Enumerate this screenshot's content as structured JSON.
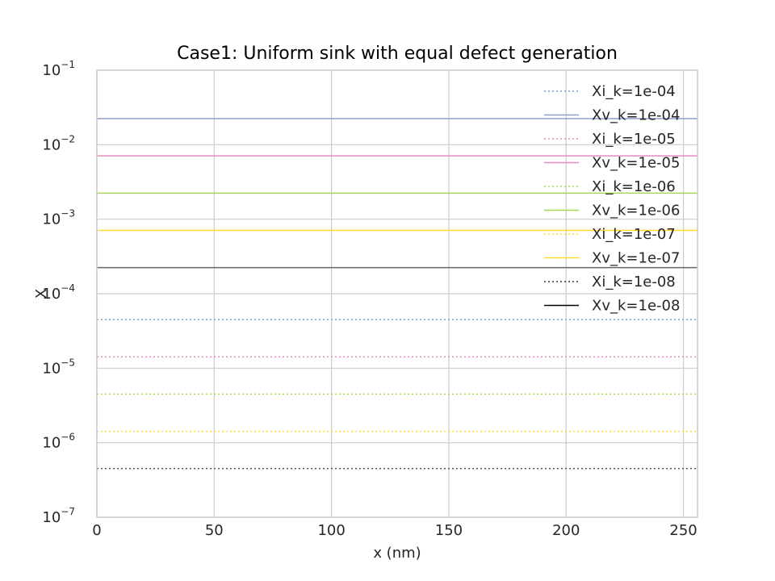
{
  "chart_data": {
    "type": "line",
    "title": "Case1: Uniform sink with equal defect generation",
    "xlabel": "x (nm)",
    "ylabel": "X",
    "xlim": [
      0,
      256
    ],
    "ylim": [
      1e-07,
      0.1
    ],
    "yscale": "log",
    "grid": true,
    "legend_position": "top-right",
    "x_ticks": [
      0,
      50,
      100,
      150,
      200,
      250
    ],
    "x_tick_labels": [
      "0",
      "50",
      "100",
      "150",
      "200",
      "250"
    ],
    "y_tick_labels": [
      {
        "base": "10",
        "exp": "−1",
        "value": 0.1
      },
      {
        "base": "10",
        "exp": "−2",
        "value": 0.01
      },
      {
        "base": "10",
        "exp": "−3",
        "value": 0.001
      },
      {
        "base": "10",
        "exp": "−4",
        "value": 0.0001
      },
      {
        "base": "10",
        "exp": "−5",
        "value": 1e-05
      },
      {
        "base": "10",
        "exp": "−6",
        "value": 1e-06
      },
      {
        "base": "10",
        "exp": "−7",
        "value": 1e-07
      }
    ],
    "x": [
      0,
      256
    ],
    "series": [
      {
        "name": "Xi_k=1e-04",
        "style": "dotted",
        "color": "#7f9cd6",
        "values": [
          4.5e-05,
          4.5e-05
        ]
      },
      {
        "name": "Xv_k=1e-04",
        "style": "solid",
        "color": "#8da0cb",
        "values": [
          0.0224,
          0.0224
        ]
      },
      {
        "name": "Xi_k=1e-05",
        "style": "dotted",
        "color": "#e78ac3",
        "values": [
          1.42e-05,
          1.42e-05
        ]
      },
      {
        "name": "Xv_k=1e-05",
        "style": "solid",
        "color": "#e78ac3",
        "values": [
          0.00708,
          0.00708
        ]
      },
      {
        "name": "Xi_k=1e-06",
        "style": "dotted",
        "color": "#a6d854",
        "values": [
          4.5e-06,
          4.5e-06
        ]
      },
      {
        "name": "Xv_k=1e-06",
        "style": "solid",
        "color": "#a6d854",
        "values": [
          0.00224,
          0.00224
        ]
      },
      {
        "name": "Xi_k=1e-07",
        "style": "dotted",
        "color": "#ffd92f",
        "values": [
          1.42e-06,
          1.42e-06
        ]
      },
      {
        "name": "Xv_k=1e-07",
        "style": "solid",
        "color": "#ffd92f",
        "values": [
          0.000708,
          0.000708
        ]
      },
      {
        "name": "Xi_k=1e-08",
        "style": "dotted",
        "color": "#333333",
        "values": [
          4.5e-07,
          4.5e-07
        ]
      },
      {
        "name": "Xv_k=1e-08",
        "style": "solid",
        "color": "#000000",
        "values": [
          0.000224,
          0.000224
        ]
      }
    ],
    "plotted_colors": {
      "Xv_k=1e-08": "#666666",
      "Xi_k=1e-08": "#555555"
    }
  }
}
